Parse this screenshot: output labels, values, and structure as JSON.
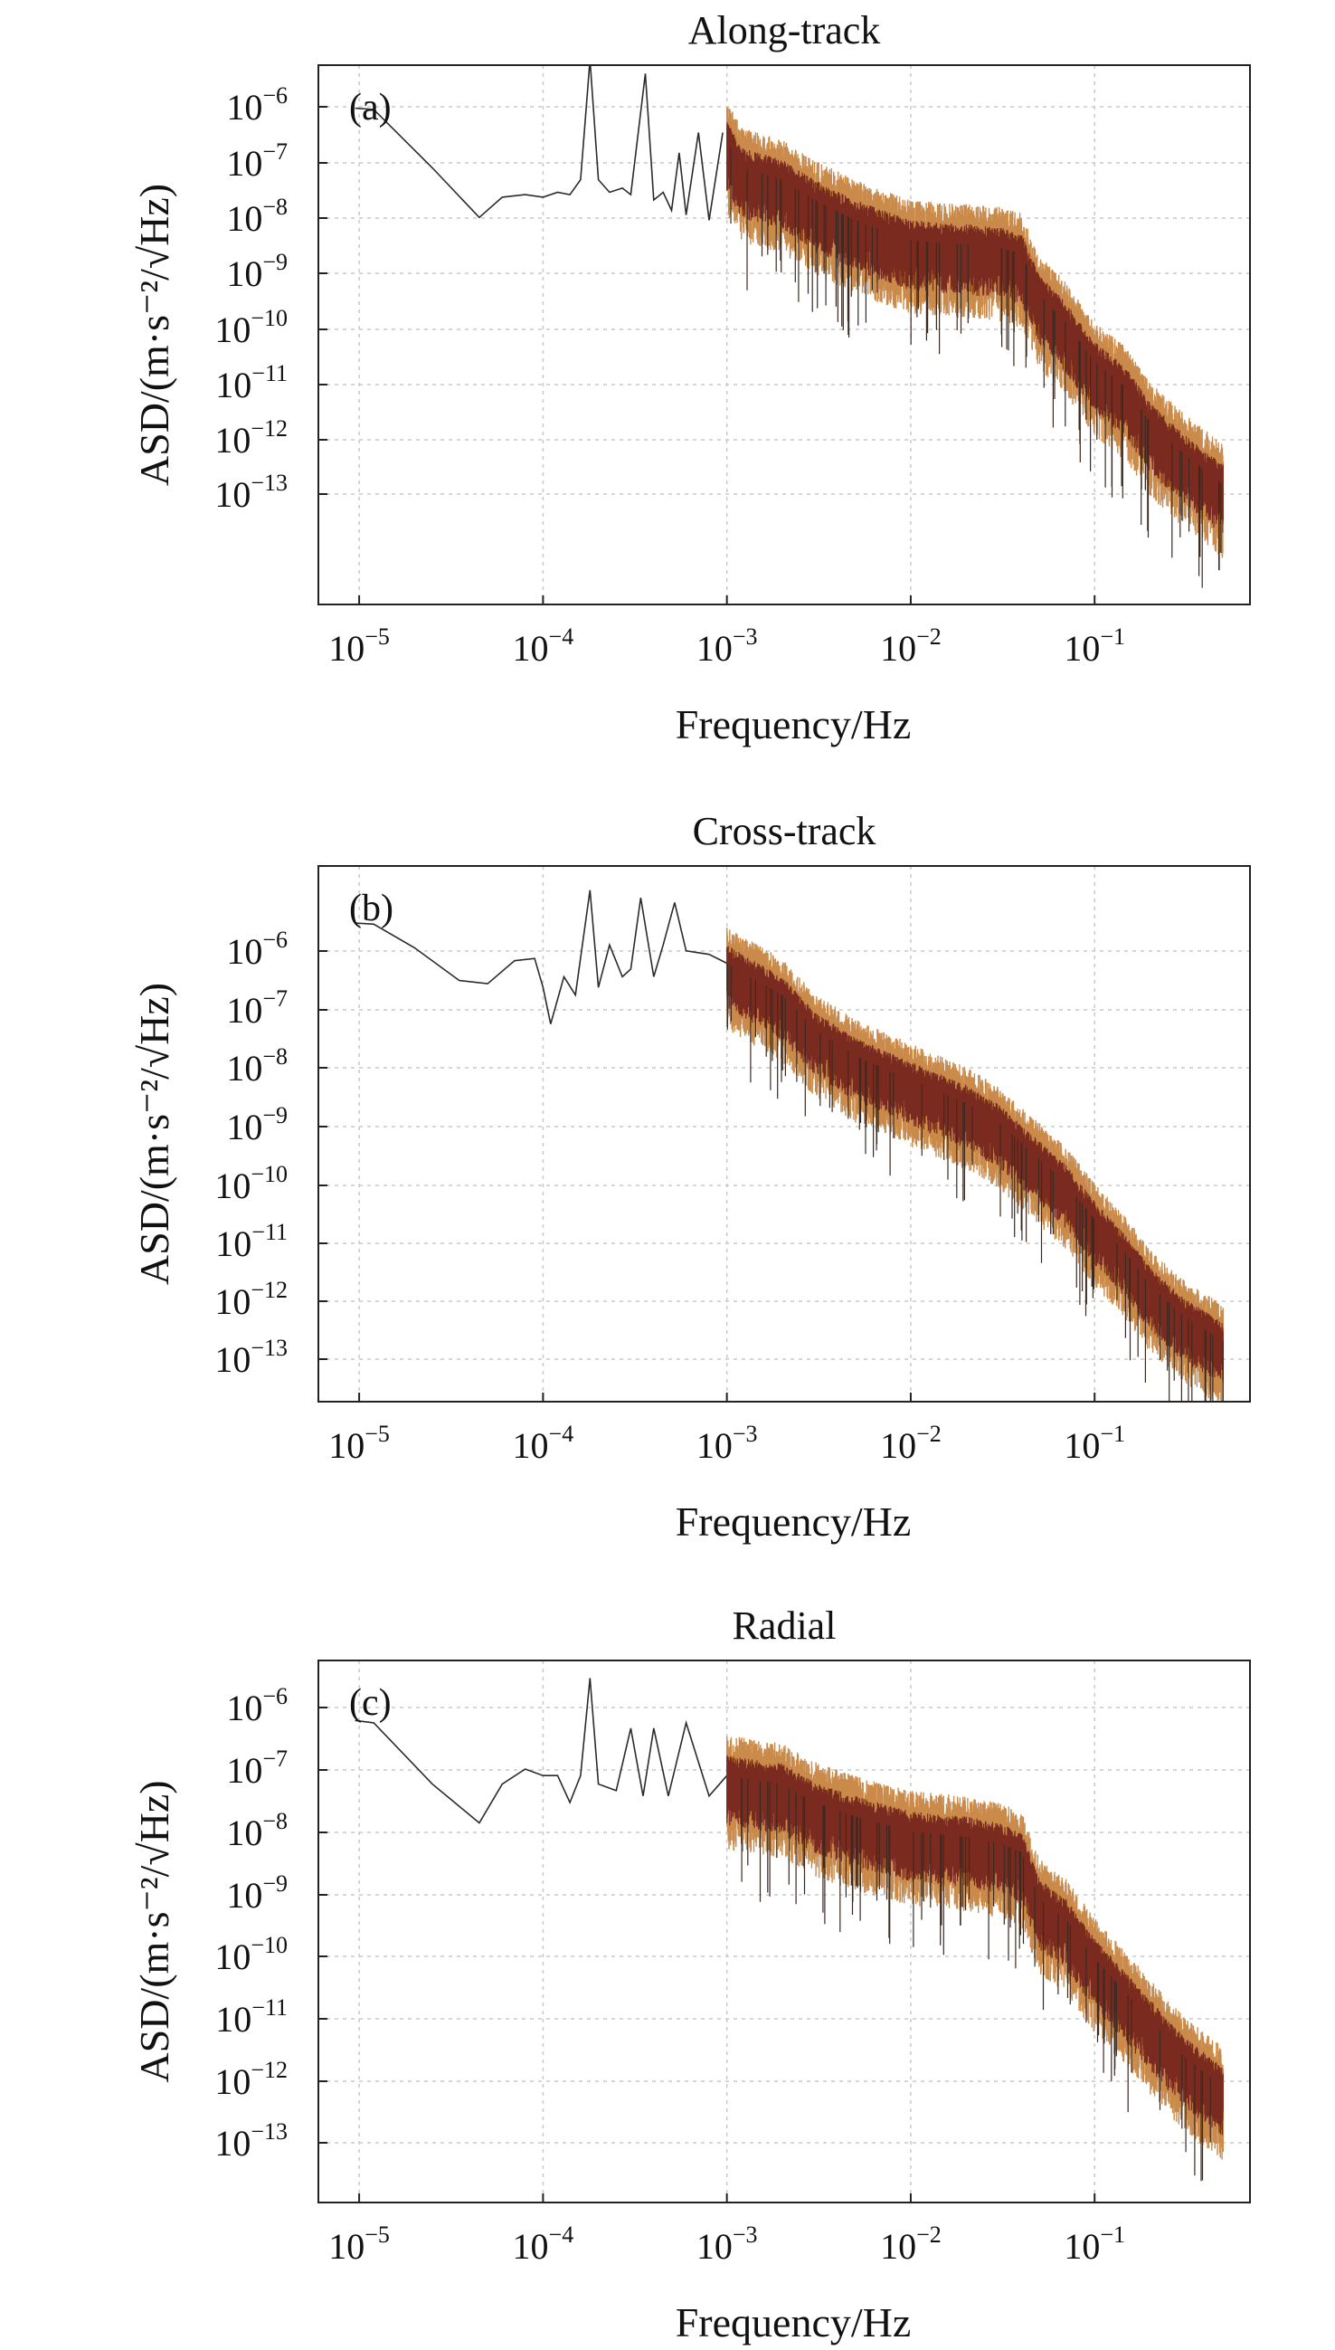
{
  "figure": {
    "background": "#ffffff"
  },
  "chart_data": [
    {
      "type": "line",
      "panel_label": "(a)",
      "title": "Along-track",
      "xlabel": "Frequency/Hz",
      "ylabel": "ASD/(m·s⁻²/√Hz)",
      "xscale": "log",
      "yscale": "log",
      "xlim": [
        6e-06,
        0.7
      ],
      "ylim": [
        1e-14,
        1e-06
      ],
      "x_ticks": [
        "10⁻⁵",
        "10⁻⁴",
        "10⁻³",
        "10⁻²",
        "10⁻¹"
      ],
      "y_ticks": [
        "10⁻⁶",
        "10⁻⁷",
        "10⁻⁸",
        "10⁻⁹",
        "10⁻¹⁰",
        "10⁻¹¹",
        "10⁻¹²",
        "10⁻¹³"
      ],
      "grid": true,
      "colors": {
        "line": "#2b2b2b",
        "band_outer": "#c98a4a",
        "band_inner": "#7a2a1e"
      },
      "peaks": [
        {
          "x": 0.00018,
          "y": 1.2e-06
        },
        {
          "x": 0.00036,
          "y": 7.5e-07
        }
      ],
      "series": [
        {
          "x": [
            9.5e-06,
            1.2e-05,
            2.5e-05,
            4.5e-05,
            6e-05,
            8e-05,
            0.0001,
            0.00012,
            0.00014,
            0.00016,
            0.00018,
            0.0002,
            0.00023,
            0.00027,
            0.0003,
            0.00036,
            0.0004,
            0.00045,
            0.0005,
            0.00055,
            0.0006,
            0.0007,
            0.0008,
            0.00095,
            0.0012,
            0.002,
            0.003,
            0.005,
            0.01,
            0.02,
            0.03,
            0.04,
            0.05,
            0.07,
            0.1,
            0.15,
            0.2,
            0.3,
            0.5
          ],
          "y": [
            2.3e-07,
            2.2e-07,
            3e-08,
            5.5e-09,
            1.1e-08,
            1.2e-08,
            1.1e-08,
            1.3e-08,
            1.2e-08,
            2e-08,
            1.2e-06,
            2e-08,
            1.3e-08,
            1.5e-08,
            1.2e-08,
            7.5e-07,
            1e-08,
            1.3e-08,
            7e-09,
            5e-08,
            6e-09,
            1e-07,
            5e-09,
            1e-07,
            3e-08,
            2e-08,
            1e-08,
            5e-09,
            2.5e-09,
            2.2e-09,
            2e-09,
            1.6e-09,
            4e-10,
            1.5e-10,
            4e-11,
            1.6e-11,
            5e-12,
            1.8e-12,
            6e-13
          ]
        }
      ]
    },
    {
      "type": "line",
      "panel_label": "(b)",
      "title": "Cross-track",
      "xlabel": "Frequency/Hz",
      "ylabel": "ASD/(m·s⁻²/√Hz)",
      "xscale": "log",
      "yscale": "log",
      "xlim": [
        6e-06,
        0.7
      ],
      "ylim": [
        3e-14,
        2e-05
      ],
      "x_ticks": [
        "10⁻⁵",
        "10⁻⁴",
        "10⁻³",
        "10⁻²",
        "10⁻¹"
      ],
      "y_ticks": [
        "10⁻⁶",
        "10⁻⁷",
        "10⁻⁸",
        "10⁻⁹",
        "10⁻¹⁰",
        "10⁻¹¹",
        "10⁻¹²",
        "10⁻¹³"
      ],
      "grid": true,
      "colors": {
        "line": "#2b2b2b",
        "band_outer": "#c98a4a",
        "band_inner": "#7a2a1e"
      },
      "peaks": [
        {
          "x": 0.00018,
          "y": 8e-06
        },
        {
          "x": 0.00034,
          "y": 6e-06
        },
        {
          "x": 0.00052,
          "y": 5e-06
        }
      ],
      "series": [
        {
          "x": [
            9.5e-06,
            1.2e-05,
            2e-05,
            3.5e-05,
            5e-05,
            7e-05,
            9e-05,
            0.0001,
            0.00011,
            0.00013,
            0.00015,
            0.00018,
            0.0002,
            0.00023,
            0.00027,
            0.0003,
            0.00034,
            0.0004,
            0.00045,
            0.00052,
            0.0006,
            0.0008,
            0.001,
            0.002,
            0.003,
            0.005,
            0.01,
            0.02,
            0.03,
            0.05,
            0.07,
            0.1,
            0.15,
            0.2,
            0.3,
            0.5
          ],
          "y": [
            2.3e-06,
            2.2e-06,
            9e-07,
            2.6e-07,
            2.3e-07,
            5.5e-07,
            6e-07,
            2e-07,
            5e-08,
            3e-07,
            1.5e-07,
            8e-06,
            2e-07,
            1e-06,
            3e-07,
            4e-07,
            6e-06,
            3e-07,
            1e-06,
            5e-06,
            8e-07,
            7e-07,
            5e-07,
            1.5e-07,
            4e-08,
            1.5e-08,
            6e-09,
            2.5e-09,
            1.2e-09,
            3e-10,
            1.2e-10,
            3e-11,
            8e-12,
            2.5e-12,
            8e-13,
            3e-13
          ]
        }
      ]
    },
    {
      "type": "line",
      "panel_label": "(c)",
      "title": "Radial",
      "xlabel": "Frequency/Hz",
      "ylabel": "ASD/(m·s⁻²/√Hz)",
      "xscale": "log",
      "yscale": "log",
      "xlim": [
        6e-06,
        0.7
      ],
      "ylim": [
        1e-14,
        1e-06
      ],
      "x_ticks": [
        "10⁻⁵",
        "10⁻⁴",
        "10⁻³",
        "10⁻²",
        "10⁻¹"
      ],
      "y_ticks": [
        "10⁻⁶",
        "10⁻⁷",
        "10⁻⁸",
        "10⁻⁹",
        "10⁻¹⁰",
        "10⁻¹¹",
        "10⁻¹²",
        "10⁻¹³"
      ],
      "grid": true,
      "colors": {
        "line": "#2b2b2b",
        "band_outer": "#c98a4a",
        "band_inner": "#7a2a1e"
      },
      "peaks": [
        {
          "x": 0.00018,
          "y": 5.5e-07
        }
      ],
      "series": [
        {
          "x": [
            9.5e-06,
            1.2e-05,
            2.5e-05,
            4.5e-05,
            6e-05,
            8e-05,
            0.0001,
            0.00012,
            0.00014,
            0.00016,
            0.00018,
            0.0002,
            0.00025,
            0.0003,
            0.00035,
            0.0004,
            0.00048,
            0.0006,
            0.0008,
            0.001,
            0.002,
            0.003,
            0.005,
            0.01,
            0.02,
            0.03,
            0.04,
            0.05,
            0.07,
            0.1,
            0.15,
            0.2,
            0.3,
            0.5
          ],
          "y": [
            1.3e-07,
            1.2e-07,
            1.5e-08,
            4e-09,
            1.5e-08,
            2.5e-08,
            2e-08,
            2e-08,
            8e-09,
            2e-08,
            5.5e-07,
            1.5e-08,
            1.2e-08,
            1e-07,
            1e-08,
            1e-07,
            1e-08,
            1.2e-07,
            1e-08,
            2e-08,
            1.5e-08,
            8e-09,
            5e-09,
            3e-09,
            2.5e-09,
            2e-09,
            1.5e-09,
            3e-10,
            1.5e-10,
            4e-11,
            1.2e-11,
            5e-12,
            1.5e-12,
            5e-13
          ]
        }
      ]
    }
  ]
}
